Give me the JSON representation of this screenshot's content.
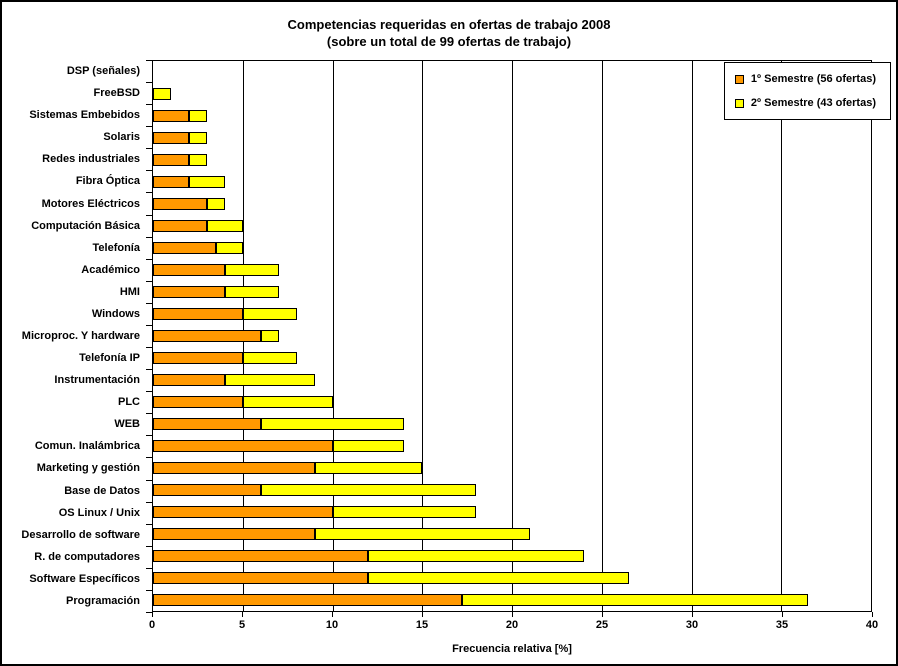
{
  "chart_data": {
    "type": "bar",
    "orientation": "horizontal",
    "stacked": true,
    "title": "Competencias requeridas en ofertas de trabajo 2008 (sobre un total de 99 ofertas de trabajo)",
    "title_lines": [
      "Competencias requeridas en ofertas de trabajo 2008",
      "(sobre un total de 99 ofertas de trabajo)"
    ],
    "xlabel": "Frecuencia relativa [%]",
    "xlim": [
      0,
      40
    ],
    "xticks": [
      0,
      5,
      10,
      15,
      20,
      25,
      30,
      35,
      40
    ],
    "grid": true,
    "legend_position": "top-right",
    "gridline_color": "#000000",
    "bar_border_color": "#000000",
    "categories": [
      "DSP (señales)",
      "FreeBSD",
      "Sistemas Embebidos",
      "Solaris",
      "Redes industriales",
      "Fibra Óptica",
      "Motores Eléctricos",
      "Computación Básica",
      "Telefonía",
      "Académico",
      "HMI",
      "Windows",
      "Microproc. Y hardware",
      "Telefonía IP",
      "Instrumentación",
      "PLC",
      "WEB",
      "Comun. Inalámbrica",
      "Marketing y gestión",
      "Base de Datos",
      "OS Linux / Unix",
      "Desarrollo de software",
      "R. de computadores",
      "Software Específicos",
      "Programación"
    ],
    "series": [
      {
        "name": "1º Semestre (56 ofertas)",
        "color": "#FF9900",
        "values": [
          0,
          0,
          2,
          2,
          2,
          2,
          3,
          3,
          3.5,
          4,
          4,
          5,
          6,
          5,
          4,
          5,
          6,
          10,
          9,
          6,
          10,
          9,
          12,
          12,
          17.2
        ]
      },
      {
        "name": "2º Semestre (43 ofertas)",
        "color": "#FFFF00",
        "values": [
          0,
          1,
          1,
          1,
          1,
          2,
          1,
          2,
          1.5,
          3,
          3,
          3,
          1,
          3,
          5,
          5,
          8,
          4,
          6,
          12,
          8,
          12,
          12,
          14.5,
          19.3
        ]
      }
    ]
  }
}
